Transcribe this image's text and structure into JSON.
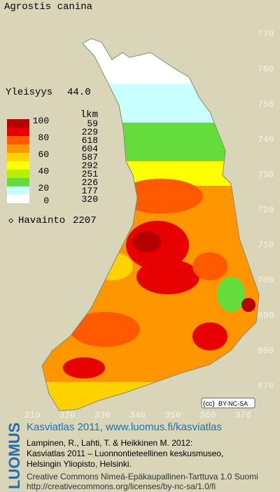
{
  "title": "Agrostis canina",
  "frequency": {
    "label": "Yleisyys",
    "value": "44.0"
  },
  "legend": {
    "count_header": "lkm",
    "scale_labels": [
      100,
      80,
      60,
      40,
      20,
      0
    ],
    "classes": [
      {
        "color": "#b40000",
        "count": 59
      },
      {
        "color": "#e60000",
        "count": 229
      },
      {
        "color": "#ff5a00",
        "count": 618
      },
      {
        "color": "#ff9600",
        "count": 604
      },
      {
        "color": "#ffd200",
        "count": 587
      },
      {
        "color": "#ffff00",
        "count": 292
      },
      {
        "color": "#b4f000",
        "count": 251
      },
      {
        "color": "#64dc3c",
        "count": 226
      },
      {
        "color": "#c8ffff",
        "count": 177
      },
      {
        "color": "#ffffff",
        "count": 320
      }
    ]
  },
  "observations": {
    "label": "Havainto",
    "value": 2207
  },
  "grid": {
    "y_labels": [
      770,
      760,
      750,
      740,
      730,
      720,
      710,
      700,
      690,
      680,
      670
    ],
    "x_labels": [
      310,
      320,
      330,
      340,
      350,
      360,
      370
    ]
  },
  "license_badge": "BY-NC-SA",
  "footer": {
    "brand": "LUOMUS",
    "heading": "Kasviatlas 2011, www.luomus.fi/kasviatlas",
    "citation": [
      "Lampinen, R., Lahti, T. & Heikkinen M. 2012:",
      "Kasviatlas 2011 – Luonnontieteellinen keskusmuseo,",
      "Helsingin Yliopisto, Helsinki."
    ],
    "license": [
      "Creative Commons Nimeä-Epäkaupallinen-Tarttuva 1.0 Suomi",
      "http://creativecommons.org/licenses/by-nc-sa/1.0/fi"
    ]
  }
}
